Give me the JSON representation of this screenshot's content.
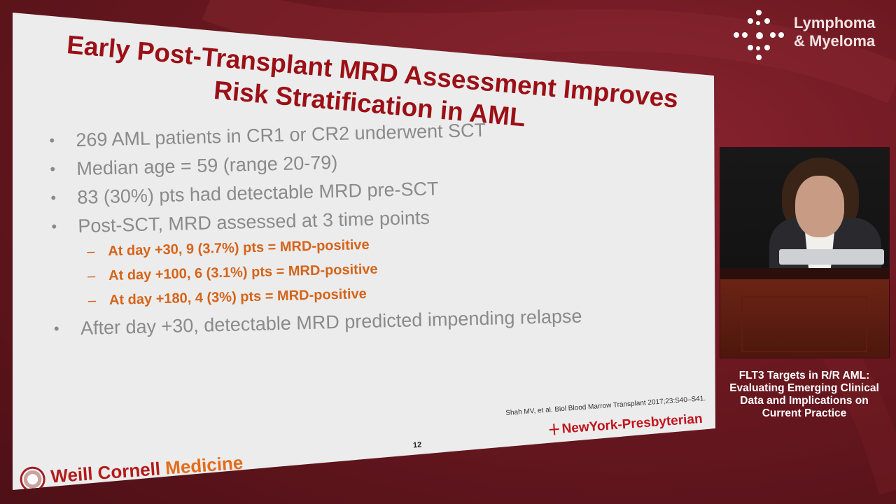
{
  "slide": {
    "title_line1": "Early Post-Transplant MRD Assessment Improves",
    "title_line2": "Risk Stratification in AML",
    "bullets": [
      {
        "text": "269 AML patients in CR1 or CR2 underwent SCT"
      },
      {
        "text": "Median age = 59 (range 20-79)"
      },
      {
        "text": "83 (30%) pts had detectable MRD pre-SCT"
      },
      {
        "text": "Post-SCT, MRD assessed at 3 time points"
      }
    ],
    "sub_bullets": [
      {
        "text": "At day +30, 9 (3.7%) pts = MRD-positive"
      },
      {
        "text": "At day +100, 6 (3.1%) pts = MRD-positive"
      },
      {
        "text": "At day +180, 4 (3%) pts = MRD-positive"
      }
    ],
    "last_bullet": "After day +30, detectable MRD predicted impending relapse",
    "citation": "Shah MV, et al. Biol Blood Marrow Transplant 2017;23:S40–S41.",
    "page_number": "12",
    "hospital_logo": "NewYork-Presbyterian",
    "institution_logo_part1": "Weill Cornell",
    "institution_logo_part2": "Medicine"
  },
  "brand": {
    "line1": "Lymphoma",
    "line2": "& Myeloma"
  },
  "caption": {
    "line1": "FLT3 Targets in R/R AML:",
    "line2": "Evaluating Emerging Clinical",
    "line3": "Data and Implications on",
    "line4": "Current Practice"
  },
  "colors": {
    "background": "#6b1820",
    "title": "#9b1016",
    "bullet_text": "#8a8a8a",
    "sub_bullet": "#d5641a"
  }
}
